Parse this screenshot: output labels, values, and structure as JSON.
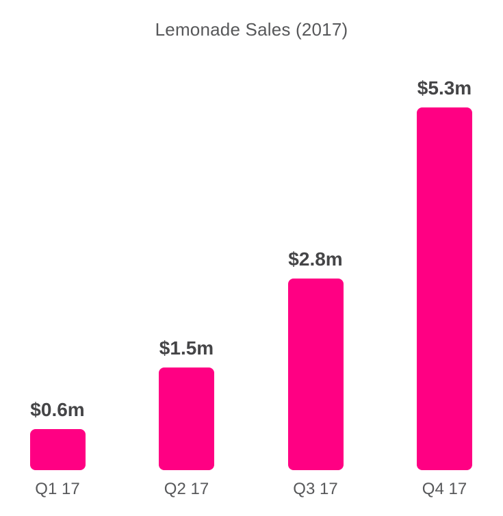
{
  "chart_data": {
    "type": "bar",
    "title": "Lemonade Sales (2017)",
    "categories": [
      "Q1 17",
      "Q2 17",
      "Q3 17",
      "Q4 17"
    ],
    "values": [
      0.6,
      1.5,
      2.8,
      5.3
    ],
    "value_labels": [
      "$0.6m",
      "$1.5m",
      "$2.8m",
      "$5.3m"
    ],
    "unit": "millions of dollars",
    "xlabel": "",
    "ylabel": "",
    "ylim": [
      0,
      5.3
    ],
    "grid": false,
    "legend": false,
    "axes_visible": false,
    "bar_color": "#FF0083"
  },
  "colors": {
    "background": "#FFFFFF",
    "bar": "#FF0083",
    "title_text": "#57585A",
    "value_label_text": "#454547",
    "category_label_text": "#57585A"
  }
}
